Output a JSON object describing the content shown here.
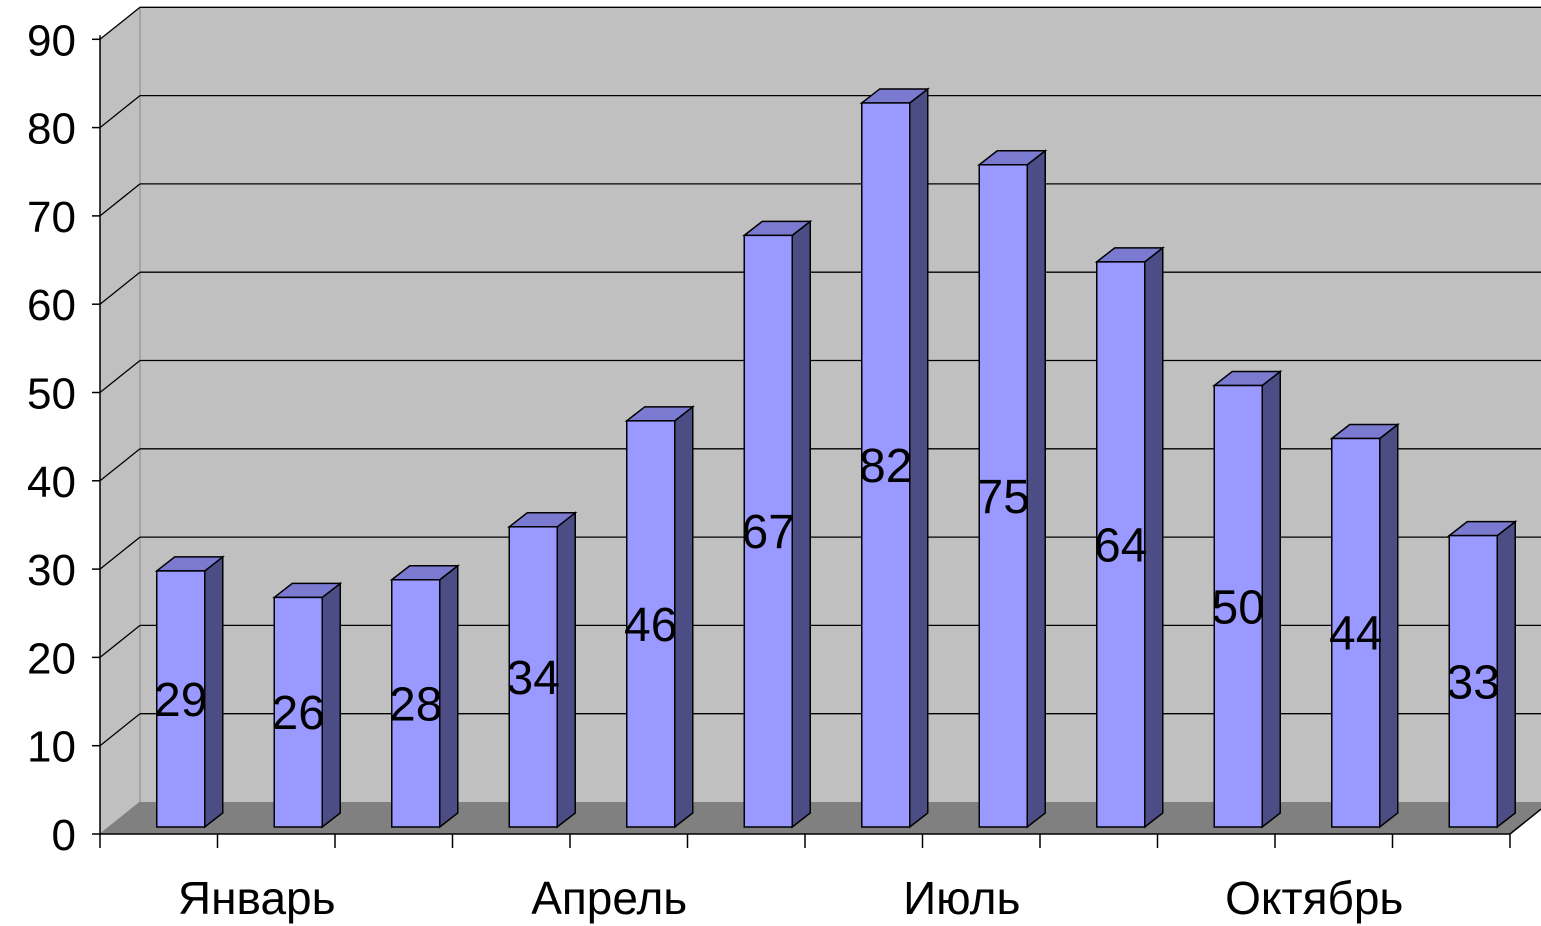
{
  "chart_data": {
    "type": "bar",
    "style": "3d-column",
    "title": "",
    "xlabel": "",
    "ylabel": "",
    "ylim": [
      0,
      90
    ],
    "yticks": [
      0,
      10,
      20,
      30,
      40,
      50,
      60,
      70,
      80,
      90
    ],
    "grid": true,
    "legend": "none",
    "categories": [
      "Январь",
      "",
      "",
      "Апрель",
      "",
      "",
      "Июль",
      "",
      "",
      "Октябрь",
      "",
      ""
    ],
    "values": [
      29,
      26,
      28,
      34,
      46,
      67,
      82,
      75,
      64,
      50,
      44,
      33
    ],
    "data_labels": true,
    "colors": {
      "bar_front": "#9999ff",
      "bar_side": "#4d4d85",
      "bar_top": "#7a7ad0",
      "wall": "#c0c0c0",
      "floor": "#808080",
      "gridline": "#000000"
    }
  }
}
